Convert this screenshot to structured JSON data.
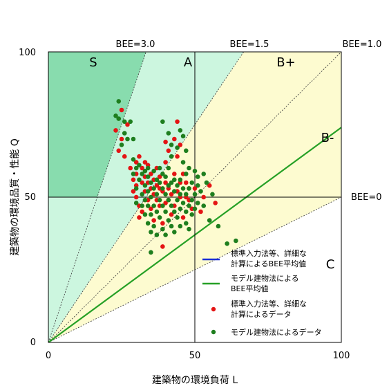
{
  "chart_data": {
    "type": "scatter",
    "title": "",
    "xlabel": "建築物の環境負荷 L",
    "ylabel": "建築物の環境品質・性能 Q",
    "xlim": [
      0,
      100
    ],
    "ylim": [
      0,
      100
    ],
    "x_ticks": [
      "0",
      "50",
      "100"
    ],
    "y_ticks": [
      "0",
      "50",
      "100"
    ],
    "grid": false,
    "legend_position": "bottom-right",
    "colors": {
      "region_S": "#88dcae",
      "region_A": "#ccf6df",
      "region_B": "#fdfbd0",
      "region_C": "#ffffff",
      "standard_series": "#e41414",
      "model_series": "#1e7e1e",
      "standard_avg_line": "#1b2fd6",
      "model_avg_line": "#26a026"
    },
    "bee_lines": [
      {
        "label": "BEE=3.0",
        "slope": 3.0
      },
      {
        "label": "BEE=1.5",
        "slope": 1.5
      },
      {
        "label": "BEE=1.0",
        "slope": 1.0
      },
      {
        "label": "BEE=0",
        "slope": 0.5
      }
    ],
    "region_labels": [
      "S",
      "A",
      "B+",
      "B-",
      "C"
    ],
    "model_average_line": {
      "slope": 0.74
    },
    "legend": [
      {
        "label_line1": "標準入力法等、詳細な",
        "label_line2": "計算によるBEE平均値",
        "marker": "line",
        "color": "#1b2fd6"
      },
      {
        "label_line1": "モデル建物法による",
        "label_line2": "BEE平均値",
        "marker": "line",
        "color": "#26a026"
      },
      {
        "label_line1": "標準入力法等、詳細な",
        "label_line2": "計算によるデータ",
        "marker": "dot",
        "color": "#e41414"
      },
      {
        "label_line1": "モデル建物法によるデータ",
        "label_line2": "",
        "marker": "dot",
        "color": "#1e7e1e"
      }
    ],
    "series": [
      {
        "name": "標準入力法等、詳細な計算によるデータ",
        "points": [
          [
            23,
            73
          ],
          [
            24,
            66
          ],
          [
            25,
            80
          ],
          [
            25,
            70
          ],
          [
            26,
            64
          ],
          [
            27,
            75
          ],
          [
            28,
            60
          ],
          [
            29,
            56
          ],
          [
            29,
            52
          ],
          [
            30,
            62
          ],
          [
            30,
            58
          ],
          [
            30,
            54
          ],
          [
            30,
            50
          ],
          [
            31,
            47
          ],
          [
            31,
            43
          ],
          [
            31,
            64
          ],
          [
            32,
            55
          ],
          [
            32,
            60
          ],
          [
            32,
            45
          ],
          [
            33,
            62
          ],
          [
            33,
            57
          ],
          [
            33,
            52
          ],
          [
            34,
            55
          ],
          [
            34,
            49
          ],
          [
            34,
            61
          ],
          [
            35,
            58
          ],
          [
            35,
            46
          ],
          [
            35,
            53
          ],
          [
            36,
            51
          ],
          [
            36,
            42
          ],
          [
            36,
            56
          ],
          [
            37,
            54
          ],
          [
            37,
            49
          ],
          [
            37,
            60
          ],
          [
            38,
            53
          ],
          [
            38,
            57
          ],
          [
            38,
            47
          ],
          [
            39,
            52
          ],
          [
            39,
            41
          ],
          [
            39,
            33
          ],
          [
            40,
            55
          ],
          [
            40,
            48
          ],
          [
            40,
            62
          ],
          [
            41,
            49
          ],
          [
            41,
            53
          ],
          [
            42,
            51
          ],
          [
            42,
            44
          ],
          [
            43,
            58
          ],
          [
            43,
            47
          ],
          [
            44,
            52
          ],
          [
            44,
            64
          ],
          [
            45,
            55
          ],
          [
            45,
            50
          ],
          [
            46,
            43
          ],
          [
            46,
            58
          ],
          [
            47,
            50
          ],
          [
            47,
            55
          ],
          [
            48,
            53
          ],
          [
            48,
            49
          ],
          [
            49,
            46
          ],
          [
            50,
            53
          ],
          [
            53,
            50
          ],
          [
            55,
            54
          ],
          [
            57,
            48
          ],
          [
            52,
            45
          ],
          [
            44,
            76
          ],
          [
            43,
            70
          ],
          [
            41,
            66
          ],
          [
            40,
            69
          ],
          [
            45,
            68
          ]
        ]
      },
      {
        "name": "モデル建物法によるデータ",
        "points": [
          [
            23,
            78
          ],
          [
            24,
            83
          ],
          [
            24,
            77
          ],
          [
            25,
            68
          ],
          [
            26,
            72
          ],
          [
            26,
            76
          ],
          [
            27,
            70
          ],
          [
            28,
            76
          ],
          [
            29,
            63
          ],
          [
            29,
            58
          ],
          [
            29,
            70
          ],
          [
            30,
            60
          ],
          [
            30,
            53
          ],
          [
            30,
            48
          ],
          [
            31,
            56
          ],
          [
            31,
            61
          ],
          [
            32,
            51
          ],
          [
            32,
            58
          ],
          [
            32,
            47
          ],
          [
            33,
            54
          ],
          [
            33,
            49
          ],
          [
            33,
            59
          ],
          [
            33,
            44
          ],
          [
            34,
            57
          ],
          [
            34,
            52
          ],
          [
            34,
            47
          ],
          [
            34,
            41
          ],
          [
            34,
            60
          ],
          [
            35,
            55
          ],
          [
            35,
            50
          ],
          [
            35,
            44
          ],
          [
            35,
            38
          ],
          [
            35,
            31
          ],
          [
            36,
            53
          ],
          [
            36,
            47
          ],
          [
            36,
            59
          ],
          [
            36,
            40
          ],
          [
            37,
            51
          ],
          [
            37,
            56
          ],
          [
            37,
            45
          ],
          [
            37,
            37
          ],
          [
            38,
            49
          ],
          [
            38,
            55
          ],
          [
            38,
            60
          ],
          [
            38,
            43
          ],
          [
            39,
            53
          ],
          [
            39,
            47
          ],
          [
            39,
            58
          ],
          [
            39,
            39
          ],
          [
            40,
            51
          ],
          [
            40,
            45
          ],
          [
            40,
            57
          ],
          [
            40,
            37
          ],
          [
            41,
            49
          ],
          [
            41,
            54
          ],
          [
            41,
            42
          ],
          [
            41,
            60
          ],
          [
            42,
            47
          ],
          [
            42,
            55
          ],
          [
            42,
            40
          ],
          [
            42,
            64
          ],
          [
            43,
            52
          ],
          [
            43,
            45
          ],
          [
            43,
            56
          ],
          [
            43,
            38
          ],
          [
            44,
            49
          ],
          [
            44,
            54
          ],
          [
            44,
            43
          ],
          [
            44,
            67
          ],
          [
            45,
            51
          ],
          [
            45,
            46
          ],
          [
            45,
            56
          ],
          [
            45,
            40
          ],
          [
            45,
            73
          ],
          [
            46,
            48
          ],
          [
            46,
            53
          ],
          [
            46,
            62
          ],
          [
            46,
            71
          ],
          [
            47,
            45
          ],
          [
            47,
            51
          ],
          [
            47,
            58
          ],
          [
            47,
            41
          ],
          [
            48,
            47
          ],
          [
            48,
            53
          ],
          [
            48,
            39
          ],
          [
            49,
            49
          ],
          [
            49,
            44
          ],
          [
            49,
            55
          ],
          [
            50,
            51
          ],
          [
            50,
            46
          ],
          [
            51,
            48
          ],
          [
            51,
            54
          ],
          [
            52,
            52
          ],
          [
            53,
            47
          ],
          [
            54,
            55
          ],
          [
            55,
            42
          ],
          [
            56,
            51
          ],
          [
            58,
            40
          ],
          [
            61,
            34
          ],
          [
            64,
            35
          ],
          [
            39,
            76
          ],
          [
            41,
            72
          ],
          [
            42,
            68
          ],
          [
            47,
            66
          ],
          [
            48,
            60
          ],
          [
            50,
            59
          ],
          [
            51,
            57
          ],
          [
            53,
            58
          ]
        ]
      }
    ]
  }
}
